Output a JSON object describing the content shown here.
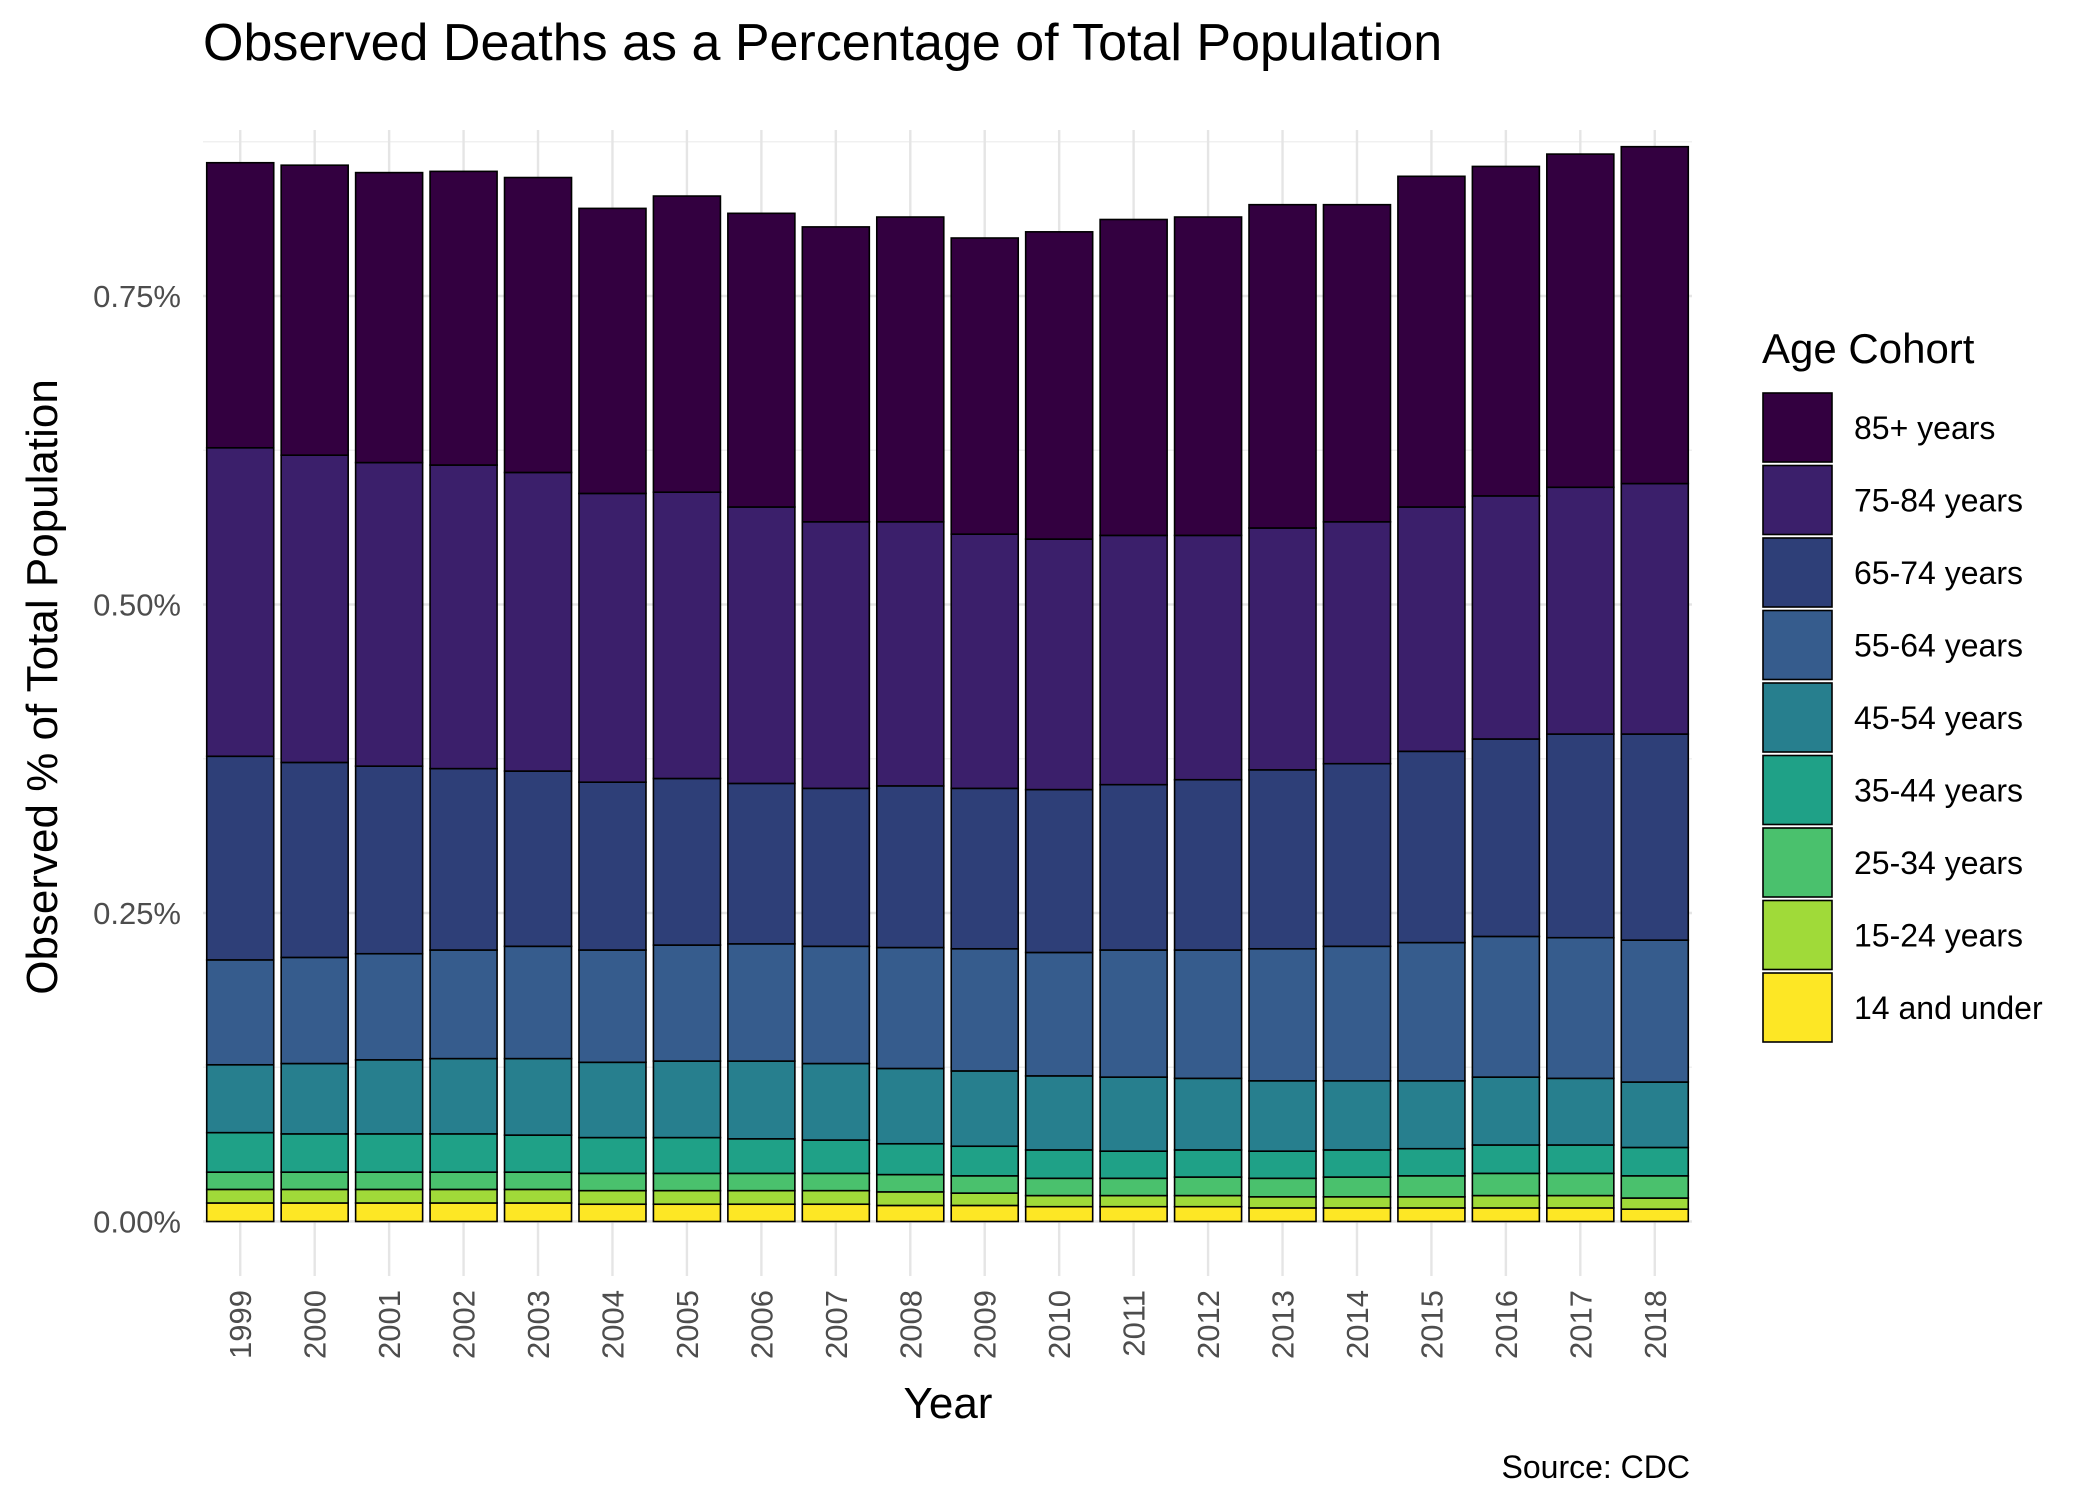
{
  "chart_data": {
    "type": "bar",
    "stacked": true,
    "title": "Observed Deaths as a Percentage of Total Population",
    "xlabel": "Year",
    "ylabel": "Observed % of Total Population",
    "caption": "Source: CDC",
    "legend_title": "Age Cohort",
    "legend_position": "right",
    "grid": true,
    "ylim": [
      0,
      0.9
    ],
    "y_ticks": [
      0,
      0.25,
      0.5,
      0.75
    ],
    "y_tick_labels": [
      "0.00%",
      "0.25%",
      "0.50%",
      "0.75%"
    ],
    "categories": [
      "1999",
      "2000",
      "2001",
      "2002",
      "2003",
      "2004",
      "2005",
      "2006",
      "2007",
      "2008",
      "2009",
      "2010",
      "2011",
      "2012",
      "2013",
      "2014",
      "2015",
      "2016",
      "2017",
      "2018"
    ],
    "series": [
      {
        "name": "14 and under",
        "color": "#FDE725",
        "values": [
          0.015,
          0.015,
          0.015,
          0.015,
          0.015,
          0.014,
          0.014,
          0.014,
          0.014,
          0.013,
          0.013,
          0.012,
          0.012,
          0.012,
          0.011,
          0.011,
          0.011,
          0.011,
          0.011,
          0.01
        ]
      },
      {
        "name": "15-24 years",
        "color": "#A0DA39",
        "values": [
          0.011,
          0.011,
          0.011,
          0.011,
          0.011,
          0.011,
          0.011,
          0.011,
          0.011,
          0.011,
          0.01,
          0.009,
          0.009,
          0.009,
          0.009,
          0.009,
          0.009,
          0.01,
          0.01,
          0.009
        ]
      },
      {
        "name": "25-34 years",
        "color": "#4AC16D",
        "values": [
          0.014,
          0.014,
          0.014,
          0.014,
          0.014,
          0.014,
          0.014,
          0.014,
          0.014,
          0.014,
          0.014,
          0.014,
          0.014,
          0.015,
          0.015,
          0.016,
          0.017,
          0.018,
          0.018,
          0.018
        ]
      },
      {
        "name": "35-44 years",
        "color": "#1FA187",
        "values": [
          0.032,
          0.031,
          0.031,
          0.031,
          0.03,
          0.029,
          0.029,
          0.028,
          0.027,
          0.025,
          0.024,
          0.023,
          0.022,
          0.022,
          0.022,
          0.022,
          0.022,
          0.023,
          0.023,
          0.023
        ]
      },
      {
        "name": "45-54 years",
        "color": "#277F8E",
        "values": [
          0.055,
          0.057,
          0.06,
          0.061,
          0.062,
          0.061,
          0.062,
          0.063,
          0.062,
          0.061,
          0.061,
          0.06,
          0.06,
          0.058,
          0.057,
          0.056,
          0.055,
          0.055,
          0.054,
          0.053
        ]
      },
      {
        "name": "55-64 years",
        "color": "#365C8D",
        "values": [
          0.085,
          0.086,
          0.086,
          0.088,
          0.091,
          0.091,
          0.094,
          0.095,
          0.095,
          0.098,
          0.099,
          0.1,
          0.103,
          0.104,
          0.107,
          0.109,
          0.112,
          0.114,
          0.114,
          0.115
        ]
      },
      {
        "name": "65-74 years",
        "color": "#2E3F78",
        "values": [
          0.165,
          0.158,
          0.152,
          0.147,
          0.142,
          0.136,
          0.135,
          0.13,
          0.128,
          0.131,
          0.13,
          0.132,
          0.134,
          0.138,
          0.145,
          0.148,
          0.155,
          0.16,
          0.165,
          0.167
        ]
      },
      {
        "name": "75-84 years",
        "color": "#3B1F6B",
        "values": [
          0.25,
          0.249,
          0.246,
          0.246,
          0.242,
          0.234,
          0.232,
          0.224,
          0.216,
          0.214,
          0.206,
          0.203,
          0.202,
          0.198,
          0.196,
          0.196,
          0.198,
          0.197,
          0.2,
          0.203
        ]
      },
      {
        "name": "85+ years",
        "color": "#330040",
        "values": [
          0.231,
          0.235,
          0.235,
          0.238,
          0.239,
          0.231,
          0.24,
          0.238,
          0.239,
          0.247,
          0.24,
          0.249,
          0.256,
          0.258,
          0.262,
          0.257,
          0.268,
          0.267,
          0.27,
          0.273
        ]
      }
    ]
  }
}
